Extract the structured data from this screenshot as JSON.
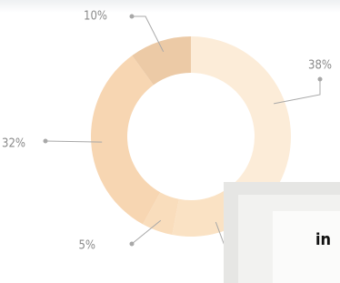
{
  "chart_data": {
    "type": "pie",
    "donut": true,
    "values": [
      38,
      15,
      5,
      32,
      10
    ],
    "value_labels": [
      "38%",
      null,
      "5%",
      "32%",
      "10%"
    ],
    "colors": [
      "#fcecd8",
      "#fae2c4",
      "#f9ddbc",
      "#f7d6b2",
      "#eccaa6"
    ]
  },
  "overlay_text": "in"
}
